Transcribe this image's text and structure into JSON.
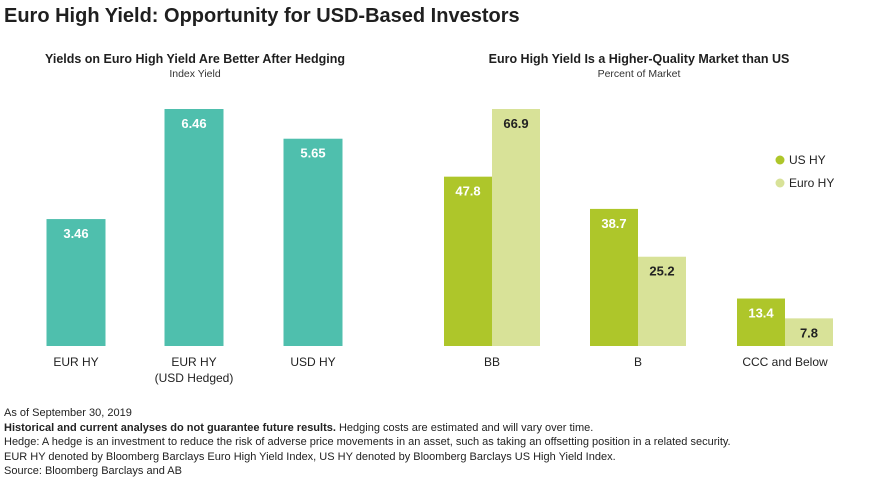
{
  "title": "Euro High Yield: Opportunity for USD-Based Investors",
  "chart_data": [
    {
      "type": "bar",
      "title": "Yields on Euro High Yield Are Better After Hedging",
      "subtitle": "Index Yield",
      "categories": [
        [
          "EUR HY"
        ],
        [
          "EUR HY",
          "(USD Hedged)"
        ],
        [
          "USD HY"
        ]
      ],
      "series": [
        {
          "name": "Index Yield",
          "values": [
            3.46,
            6.46,
            5.65
          ],
          "labels": [
            "3.46",
            "6.46",
            "5.65"
          ]
        }
      ],
      "ylim": [
        0,
        6.46
      ],
      "color": "#4fbfad",
      "xlabel": "",
      "ylabel": ""
    },
    {
      "type": "bar",
      "title": "Euro High Yield Is a Higher-Quality Market than US",
      "subtitle": "Percent of Market",
      "categories": [
        [
          "BB"
        ],
        [
          "B"
        ],
        [
          "CCC and Below"
        ]
      ],
      "series": [
        {
          "name": "US HY",
          "values": [
            47.8,
            38.7,
            13.4
          ],
          "labels": [
            "47.8",
            "38.7",
            "13.4"
          ],
          "color": "#aec62a",
          "label_color": "#ffffff"
        },
        {
          "name": "Euro HY",
          "values": [
            66.9,
            25.2,
            7.8
          ],
          "labels": [
            "66.9",
            "25.2",
            "7.8"
          ],
          "color": "#d8e298",
          "label_color": "#222222"
        }
      ],
      "ylim": [
        0,
        66.9
      ],
      "legend_position": "right",
      "xlabel": "",
      "ylabel": ""
    }
  ],
  "notes": {
    "as_of": "As of September 30, 2019",
    "disclaimer_bold": "Historical and current analyses do not guarantee future results.",
    "disclaimer_rest": " Hedging costs are estimated and will vary over time.",
    "hedge_def": "Hedge: A hedge is an investment to reduce the risk of adverse price movements in an asset, such as taking an offsetting position in a related security.",
    "index_def": "EUR HY denoted by Bloomberg Barclays Euro High Yield Index, US HY denoted by Bloomberg Barclays US High Yield Index.",
    "source": "Source: Bloomberg Barclays and AB"
  }
}
